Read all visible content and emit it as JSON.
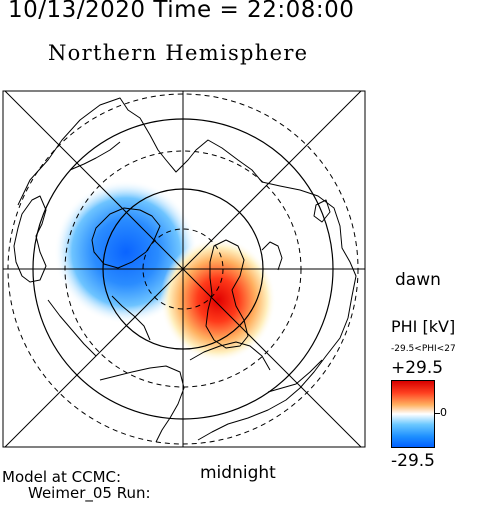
{
  "header": {
    "timestamp": "10/13/2020 Time = 22:08:00",
    "title": "Northern Hemisphere"
  },
  "map": {
    "dawn_label": "dawn",
    "midnight_label": "midnight",
    "positive_cell_color": "#e00000",
    "negative_cell_color": "#1e90ff"
  },
  "colorbar": {
    "title": "PHI [kV]",
    "range_text": "-29.5<PHI<27",
    "max_label": "+29.5",
    "zero_label": "0",
    "min_label": "-29.5",
    "colors": [
      "#d70000",
      "#ff4020",
      "#ffb060",
      "#ffffff",
      "#6ac8ff",
      "#1e90ff",
      "#0060ff"
    ]
  },
  "footer": {
    "model_line1": "Model at CCMC:",
    "model_line2": "Weimer_05 Run:"
  }
}
